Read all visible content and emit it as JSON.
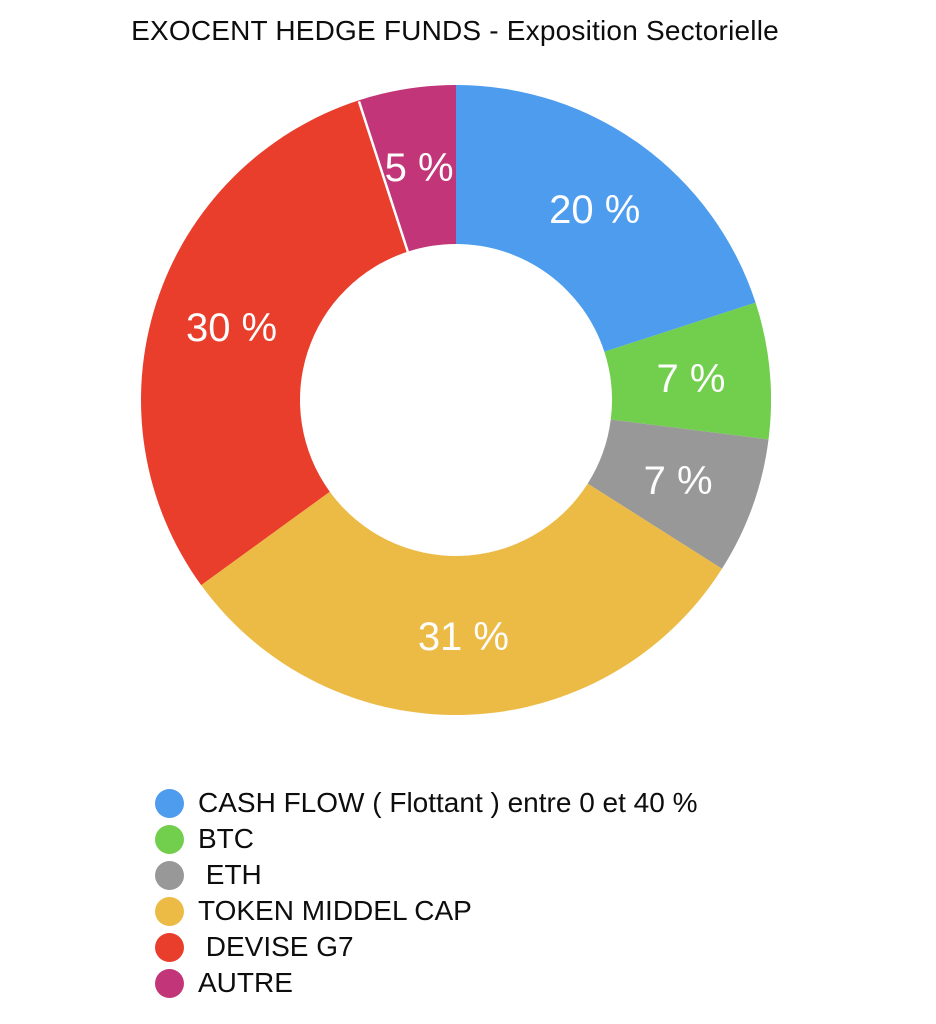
{
  "title": "EXOCENT HEDGE FUNDS - Exposition Sectorielle",
  "chart_data": {
    "type": "pie",
    "subtype": "donut",
    "title": "EXOCENT HEDGE FUNDS - Exposition Sectorielle",
    "start_angle_deg": 0,
    "direction": "clockwise",
    "total": 100,
    "slices": [
      {
        "label": "CASH FLOW ( Flottant ) entre 0 et 40 %",
        "value": 20,
        "display": "20 %",
        "color": "#4D9CEE"
      },
      {
        "label": "BTC",
        "value": 7,
        "display": "7 %",
        "color": "#72CE4D"
      },
      {
        "label": " ETH",
        "value": 7,
        "display": "7 %",
        "color": "#989898"
      },
      {
        "label": "TOKEN MIDDEL CAP",
        "value": 31,
        "display": "31 %",
        "color": "#ECBB45"
      },
      {
        "label": " DEVISE G7",
        "value": 30,
        "display": "30 %",
        "color": "#E93E2B"
      },
      {
        "label": "AUTRE",
        "value": 5,
        "display": "5 %",
        "color": "#C23578"
      }
    ],
    "slice_label_color": "#FDFDFD",
    "white_seam_between": [
      " DEVISE G7",
      "AUTRE"
    ],
    "legend_position": "bottom-left",
    "background": "#FFFFFF"
  }
}
